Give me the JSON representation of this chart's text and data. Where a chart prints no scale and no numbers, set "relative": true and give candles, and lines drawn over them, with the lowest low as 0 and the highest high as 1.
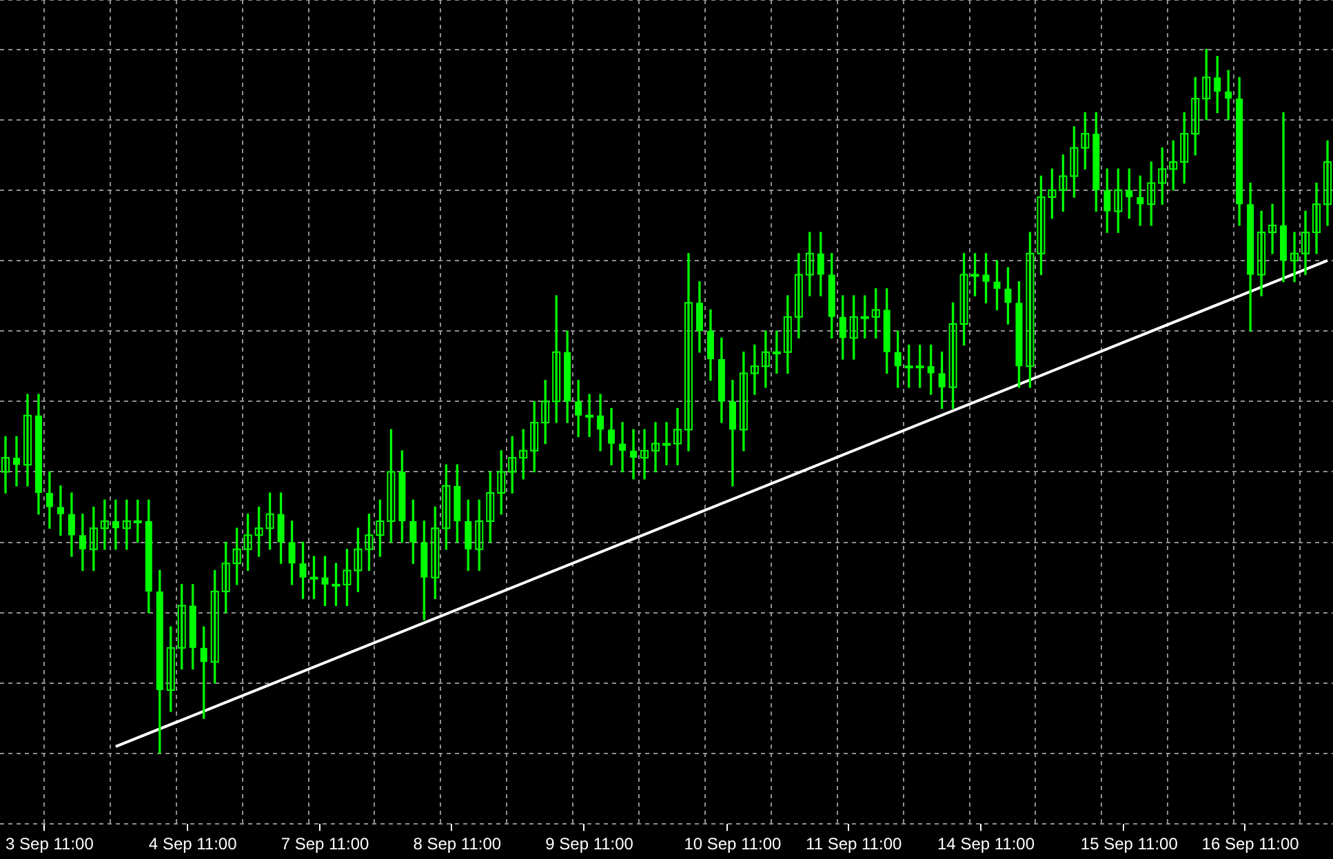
{
  "chart_data": {
    "type": "candlestick",
    "relative": true,
    "grid": true,
    "color": "#00ff00",
    "categories": [
      null,
      null,
      null,
      null,
      "3 Sep 11:00",
      null,
      null,
      null,
      null,
      null,
      null,
      null,
      null,
      null,
      null,
      null,
      null,
      "4 Sep 11:00",
      null,
      null,
      null,
      null,
      null,
      null,
      null,
      null,
      null,
      null,
      null,
      "7 Sep 11:00",
      null,
      null,
      null,
      null,
      null,
      null,
      null,
      null,
      null,
      null,
      null,
      "8 Sep 11:00",
      null,
      null,
      null,
      null,
      null,
      null,
      null,
      null,
      null,
      null,
      null,
      "9 Sep 11:00",
      null,
      null,
      null,
      null,
      null,
      null,
      null,
      null,
      null,
      null,
      null,
      null,
      "10 Sep 11:00",
      null,
      null,
      null,
      null,
      null,
      null,
      null,
      null,
      null,
      null,
      "11 Sep 11:00",
      null,
      null,
      null,
      null,
      null,
      null,
      null,
      null,
      null,
      null,
      null,
      "14 Sep 11:00",
      null,
      null,
      null,
      null,
      null,
      null,
      null,
      null,
      null,
      null,
      null,
      null,
      "15 Sep 11:00",
      null,
      null,
      null,
      null,
      null,
      null,
      null,
      null,
      null,
      null,
      "16 Sep 11:00",
      null,
      null,
      null,
      null,
      null,
      null,
      null
    ],
    "ohlc": [
      [
        0.4,
        0.45,
        0.37,
        0.42
      ],
      [
        0.42,
        0.45,
        0.38,
        0.41
      ],
      [
        0.41,
        0.51,
        0.38,
        0.48
      ],
      [
        0.48,
        0.51,
        0.34,
        0.37
      ],
      [
        0.37,
        0.4,
        0.32,
        0.35
      ],
      [
        0.35,
        0.38,
        0.31,
        0.34
      ],
      [
        0.34,
        0.37,
        0.28,
        0.31
      ],
      [
        0.31,
        0.34,
        0.26,
        0.29
      ],
      [
        0.29,
        0.35,
        0.26,
        0.32
      ],
      [
        0.32,
        0.36,
        0.29,
        0.33
      ],
      [
        0.33,
        0.36,
        0.29,
        0.32
      ],
      [
        0.32,
        0.36,
        0.29,
        0.33
      ],
      [
        0.33,
        0.36,
        0.3,
        0.33
      ],
      [
        0.33,
        0.36,
        0.2,
        0.23
      ],
      [
        0.23,
        0.26,
        0,
        0.09
      ],
      [
        0.09,
        0.18,
        0.06,
        0.15
      ],
      [
        0.15,
        0.24,
        0.12,
        0.21
      ],
      [
        0.21,
        0.24,
        0.12,
        0.15
      ],
      [
        0.15,
        0.18,
        0.05,
        0.13
      ],
      [
        0.13,
        0.26,
        0.1,
        0.23
      ],
      [
        0.23,
        0.3,
        0.2,
        0.27
      ],
      [
        0.27,
        0.32,
        0.24,
        0.29
      ],
      [
        0.29,
        0.34,
        0.26,
        0.31
      ],
      [
        0.31,
        0.35,
        0.28,
        0.32
      ],
      [
        0.32,
        0.37,
        0.29,
        0.34
      ],
      [
        0.34,
        0.37,
        0.27,
        0.3
      ],
      [
        0.3,
        0.33,
        0.24,
        0.27
      ],
      [
        0.27,
        0.3,
        0.22,
        0.25
      ],
      [
        0.25,
        0.28,
        0.22,
        0.25
      ],
      [
        0.25,
        0.28,
        0.21,
        0.24
      ],
      [
        0.24,
        0.27,
        0.21,
        0.24
      ],
      [
        0.24,
        0.29,
        0.21,
        0.26
      ],
      [
        0.26,
        0.32,
        0.23,
        0.29
      ],
      [
        0.29,
        0.34,
        0.26,
        0.31
      ],
      [
        0.31,
        0.36,
        0.28,
        0.33
      ],
      [
        0.33,
        0.46,
        0.3,
        0.4
      ],
      [
        0.4,
        0.43,
        0.3,
        0.33
      ],
      [
        0.33,
        0.36,
        0.27,
        0.3
      ],
      [
        0.3,
        0.33,
        0.19,
        0.25
      ],
      [
        0.25,
        0.35,
        0.22,
        0.32
      ],
      [
        0.32,
        0.41,
        0.29,
        0.38
      ],
      [
        0.38,
        0.41,
        0.3,
        0.33
      ],
      [
        0.33,
        0.36,
        0.26,
        0.29
      ],
      [
        0.29,
        0.36,
        0.26,
        0.33
      ],
      [
        0.33,
        0.4,
        0.3,
        0.37
      ],
      [
        0.37,
        0.43,
        0.34,
        0.4
      ],
      [
        0.4,
        0.45,
        0.37,
        0.42
      ],
      [
        0.42,
        0.46,
        0.39,
        0.43
      ],
      [
        0.43,
        0.5,
        0.4,
        0.47
      ],
      [
        0.47,
        0.53,
        0.44,
        0.5
      ],
      [
        0.5,
        0.65,
        0.47,
        0.57
      ],
      [
        0.57,
        0.6,
        0.47,
        0.5
      ],
      [
        0.5,
        0.53,
        0.45,
        0.48
      ],
      [
        0.48,
        0.51,
        0.45,
        0.48
      ],
      [
        0.48,
        0.51,
        0.43,
        0.46
      ],
      [
        0.46,
        0.49,
        0.41,
        0.44
      ],
      [
        0.44,
        0.47,
        0.4,
        0.43
      ],
      [
        0.43,
        0.46,
        0.39,
        0.42
      ],
      [
        0.42,
        0.46,
        0.39,
        0.43
      ],
      [
        0.43,
        0.47,
        0.4,
        0.44
      ],
      [
        0.44,
        0.47,
        0.41,
        0.44
      ],
      [
        0.44,
        0.49,
        0.41,
        0.46
      ],
      [
        0.46,
        0.71,
        0.43,
        0.64
      ],
      [
        0.64,
        0.67,
        0.57,
        0.6
      ],
      [
        0.6,
        0.63,
        0.53,
        0.56
      ],
      [
        0.56,
        0.59,
        0.47,
        0.5
      ],
      [
        0.5,
        0.53,
        0.38,
        0.46
      ],
      [
        0.46,
        0.57,
        0.43,
        0.54
      ],
      [
        0.54,
        0.58,
        0.51,
        0.55
      ],
      [
        0.55,
        0.6,
        0.52,
        0.57
      ],
      [
        0.57,
        0.6,
        0.54,
        0.57
      ],
      [
        0.57,
        0.65,
        0.54,
        0.62
      ],
      [
        0.62,
        0.71,
        0.59,
        0.68
      ],
      [
        0.68,
        0.74,
        0.65,
        0.71
      ],
      [
        0.71,
        0.74,
        0.65,
        0.68
      ],
      [
        0.68,
        0.71,
        0.59,
        0.62
      ],
      [
        0.62,
        0.65,
        0.56,
        0.59
      ],
      [
        0.59,
        0.65,
        0.56,
        0.62
      ],
      [
        0.62,
        0.65,
        0.59,
        0.62
      ],
      [
        0.62,
        0.66,
        0.59,
        0.63
      ],
      [
        0.63,
        0.66,
        0.54,
        0.57
      ],
      [
        0.57,
        0.6,
        0.52,
        0.55
      ],
      [
        0.55,
        0.58,
        0.52,
        0.55
      ],
      [
        0.55,
        0.58,
        0.52,
        0.55
      ],
      [
        0.55,
        0.58,
        0.51,
        0.54
      ],
      [
        0.54,
        0.57,
        0.49,
        0.52
      ],
      [
        0.52,
        0.64,
        0.49,
        0.61
      ],
      [
        0.61,
        0.71,
        0.58,
        0.68
      ],
      [
        0.68,
        0.71,
        0.65,
        0.68
      ],
      [
        0.68,
        0.71,
        0.64,
        0.67
      ],
      [
        0.67,
        0.7,
        0.63,
        0.66
      ],
      [
        0.66,
        0.69,
        0.61,
        0.64
      ],
      [
        0.64,
        0.67,
        0.52,
        0.55
      ],
      [
        0.55,
        0.74,
        0.52,
        0.71
      ],
      [
        0.71,
        0.82,
        0.68,
        0.79
      ],
      [
        0.79,
        0.83,
        0.76,
        0.8
      ],
      [
        0.8,
        0.85,
        0.77,
        0.82
      ],
      [
        0.82,
        0.89,
        0.79,
        0.86
      ],
      [
        0.86,
        0.91,
        0.83,
        0.88
      ],
      [
        0.88,
        0.91,
        0.77,
        0.8
      ],
      [
        0.8,
        0.83,
        0.74,
        0.77
      ],
      [
        0.77,
        0.83,
        0.74,
        0.8
      ],
      [
        0.8,
        0.83,
        0.76,
        0.79
      ],
      [
        0.79,
        0.82,
        0.75,
        0.78
      ],
      [
        0.78,
        0.84,
        0.75,
        0.81
      ],
      [
        0.81,
        0.86,
        0.78,
        0.83
      ],
      [
        0.83,
        0.87,
        0.8,
        0.84
      ],
      [
        0.84,
        0.91,
        0.81,
        0.88
      ],
      [
        0.88,
        0.96,
        0.85,
        0.93
      ],
      [
        0.93,
        1,
        0.9,
        0.96
      ],
      [
        0.96,
        0.99,
        0.91,
        0.94
      ],
      [
        0.94,
        0.97,
        0.9,
        0.93
      ],
      [
        0.93,
        0.96,
        0.75,
        0.78
      ],
      [
        0.78,
        0.81,
        0.6,
        0.68
      ],
      [
        0.68,
        0.77,
        0.65,
        0.74
      ],
      [
        0.74,
        0.78,
        0.71,
        0.75
      ],
      [
        0.75,
        0.91,
        0.67,
        0.7
      ],
      [
        0.7,
        0.74,
        0.67,
        0.71
      ],
      [
        0.71,
        0.77,
        0.68,
        0.74
      ],
      [
        0.74,
        0.81,
        0.71,
        0.78
      ],
      [
        0.78,
        0.87,
        0.75,
        0.84
      ]
    ],
    "series": [
      {
        "type": "line",
        "color": "#ffffff",
        "values": [
          null,
          null,
          null,
          null,
          null,
          null,
          null,
          null,
          null,
          null,
          0.01,
          null,
          null,
          null,
          null,
          null,
          null,
          null,
          null,
          null,
          null,
          null,
          null,
          null,
          null,
          null,
          null,
          null,
          null,
          null,
          null,
          null,
          null,
          null,
          null,
          null,
          null,
          null,
          null,
          null,
          null,
          null,
          null,
          null,
          null,
          null,
          null,
          null,
          null,
          null,
          null,
          null,
          null,
          null,
          null,
          null,
          null,
          null,
          null,
          null,
          null,
          null,
          null,
          null,
          null,
          null,
          null,
          null,
          null,
          null,
          null,
          null,
          null,
          null,
          null,
          null,
          null,
          null,
          null,
          null,
          null,
          null,
          null,
          null,
          null,
          null,
          null,
          null,
          null,
          null,
          null,
          null,
          null,
          null,
          null,
          null,
          null,
          null,
          null,
          null,
          null,
          null,
          null,
          null,
          null,
          null,
          null,
          null,
          null,
          null,
          null,
          null,
          null,
          null,
          null,
          null,
          null,
          null,
          null,
          null,
          0.7
        ]
      }
    ]
  }
}
